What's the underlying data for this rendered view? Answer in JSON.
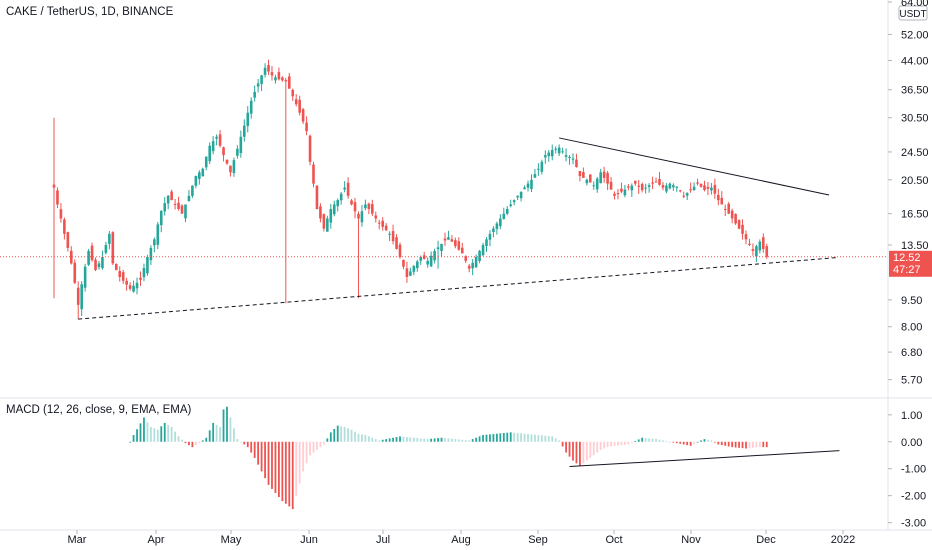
{
  "header": {
    "symbol_title": "CAKE / TetherUS, 1D, BINANCE",
    "currency_badge": "USDT"
  },
  "price_tag": {
    "price": "12.52",
    "countdown": "47:27"
  },
  "macd_title": "MACD (12, 26, close, 9, EMA, EMA)",
  "colors": {
    "up": "#26a69a",
    "down": "#ef5350",
    "hist_up": "#26a69a",
    "hist_down": "#ef5350",
    "hist_up_light": "#b2dfdb",
    "hist_down_light": "#ffcdd2",
    "price_line": "#ef5350",
    "trendline": "#131722",
    "axis_border": "#e0e3eb"
  },
  "chart_data": [
    {
      "type": "candlestick",
      "title": "CAKE / TetherUS, 1D, BINANCE",
      "scale": "log",
      "ylim": [
        5.2,
        64.0
      ],
      "y_ticks": [
        "64.00",
        "52.00",
        "44.00",
        "36.50",
        "30.50",
        "24.50",
        "20.50",
        "16.50",
        "13.50",
        "9.50",
        "8.00",
        "6.80",
        "5.70"
      ],
      "x_ticks": [
        "Mar",
        "Apr",
        "May",
        "Jun",
        "Jul",
        "Aug",
        "Sep",
        "Oct",
        "Nov",
        "Dec",
        "2022"
      ],
      "last_price": 12.52,
      "price_path": [
        [
          0,
          19.5
        ],
        [
          1,
          17.5
        ],
        [
          3,
          14.5
        ],
        [
          5,
          12.0
        ],
        [
          7,
          9.2
        ],
        [
          8,
          10.5
        ],
        [
          10,
          13.0
        ],
        [
          12,
          11.5
        ],
        [
          14,
          12.5
        ],
        [
          16,
          14.5
        ],
        [
          17,
          12.0
        ],
        [
          19,
          11.0
        ],
        [
          22,
          10.2
        ],
        [
          25,
          10.8
        ],
        [
          27,
          12.5
        ],
        [
          29,
          14.0
        ],
        [
          31,
          16.8
        ],
        [
          33,
          18.5
        ],
        [
          35,
          17.5
        ],
        [
          37,
          16.5
        ],
        [
          39,
          18.5
        ],
        [
          41,
          21.0
        ],
        [
          43,
          22.0
        ],
        [
          45,
          25.5
        ],
        [
          47,
          27.0
        ],
        [
          49,
          24.0
        ],
        [
          51,
          21.5
        ],
        [
          53,
          25.0
        ],
        [
          55,
          29.0
        ],
        [
          57,
          34.0
        ],
        [
          59,
          38.0
        ],
        [
          61,
          42.0
        ],
        [
          63,
          40.0
        ],
        [
          65,
          39.0
        ],
        [
          67,
          38.5
        ],
        [
          69,
          35.0
        ],
        [
          71,
          31.5
        ],
        [
          73,
          28.0
        ],
        [
          74,
          23.0
        ],
        [
          76,
          17.0
        ],
        [
          78,
          15.0
        ],
        [
          80,
          17.0
        ],
        [
          82,
          18.0
        ],
        [
          84,
          19.5
        ],
        [
          86,
          17.5
        ],
        [
          88,
          16.0
        ],
        [
          90,
          17.5
        ],
        [
          92,
          16.5
        ],
        [
          94,
          15.5
        ],
        [
          97,
          14.5
        ],
        [
          100,
          12.5
        ],
        [
          102,
          11.0
        ],
        [
          104,
          11.8
        ],
        [
          106,
          12.5
        ],
        [
          108,
          12.2
        ],
        [
          110,
          13.0
        ],
        [
          112,
          13.6
        ],
        [
          114,
          14.2
        ],
        [
          116,
          13.4
        ],
        [
          118,
          12.8
        ],
        [
          120,
          11.6
        ],
        [
          122,
          12.5
        ],
        [
          124,
          13.5
        ],
        [
          126,
          14.5
        ],
        [
          128,
          15.5
        ],
        [
          130,
          16.5
        ],
        [
          132,
          17.5
        ],
        [
          134,
          18.5
        ],
        [
          136,
          19.5
        ],
        [
          138,
          20.5
        ],
        [
          140,
          22.0
        ],
        [
          142,
          24.0
        ],
        [
          144,
          24.8
        ],
        [
          146,
          25.2
        ],
        [
          148,
          24.0
        ],
        [
          150,
          23.5
        ],
        [
          152,
          21.0
        ],
        [
          154,
          20.5
        ],
        [
          156,
          19.8
        ],
        [
          158,
          21.5
        ],
        [
          160,
          20.0
        ],
        [
          162,
          18.5
        ],
        [
          164,
          19.0
        ],
        [
          166,
          19.5
        ],
        [
          168,
          20.0
        ],
        [
          170,
          19.2
        ],
        [
          172,
          19.8
        ],
        [
          174,
          20.2
        ],
        [
          176,
          19.5
        ],
        [
          178,
          20.0
        ],
        [
          180,
          19.6
        ],
        [
          182,
          18.5
        ],
        [
          184,
          19.2
        ],
        [
          186,
          20.0
        ],
        [
          188,
          19.2
        ],
        [
          190,
          19.5
        ],
        [
          192,
          18.0
        ],
        [
          194,
          17.0
        ],
        [
          196,
          16.0
        ],
        [
          198,
          15.0
        ],
        [
          200,
          14.0
        ],
        [
          202,
          13.0
        ],
        [
          204,
          13.8
        ],
        [
          206,
          12.52
        ]
      ],
      "trendlines": [
        {
          "name": "descending-resistance",
          "style": "solid",
          "from": [
            146,
            26.8
          ],
          "to": [
            224,
            18.6
          ]
        },
        {
          "name": "rising-support",
          "style": "dashed",
          "from": [
            7,
            8.4
          ],
          "to": [
            226,
            12.45
          ]
        }
      ]
    },
    {
      "type": "histogram",
      "title": "MACD (12, 26, close, 9, EMA, EMA)",
      "ylim": [
        -3.2,
        1.55
      ],
      "y_ticks": [
        "1.00",
        "0.00",
        "-1.00",
        "-2.00",
        "-3.00"
      ],
      "hist_path": [
        [
          22,
          0.0
        ],
        [
          23,
          0.25
        ],
        [
          26,
          0.9
        ],
        [
          28,
          0.55
        ],
        [
          30,
          0.45
        ],
        [
          32,
          0.7
        ],
        [
          34,
          0.55
        ],
        [
          36,
          0.2
        ],
        [
          38,
          -0.05
        ],
        [
          40,
          -0.2
        ],
        [
          42,
          -0.05
        ],
        [
          44,
          0.15
        ],
        [
          46,
          0.7
        ],
        [
          48,
          0.55
        ],
        [
          49,
          1.2
        ],
        [
          50,
          1.3
        ],
        [
          52,
          0.5
        ],
        [
          53,
          0.1
        ],
        [
          56,
          -0.2
        ],
        [
          58,
          -0.6
        ],
        [
          60,
          -1.1
        ],
        [
          62,
          -1.6
        ],
        [
          64,
          -1.9
        ],
        [
          66,
          -2.2
        ],
        [
          68,
          -2.4
        ],
        [
          69,
          -2.5
        ],
        [
          70,
          -2.0
        ],
        [
          72,
          -1.1
        ],
        [
          74,
          -0.5
        ],
        [
          76,
          -0.3
        ],
        [
          78,
          -0.1
        ],
        [
          80,
          0.35
        ],
        [
          82,
          0.6
        ],
        [
          84,
          0.55
        ],
        [
          86,
          0.45
        ],
        [
          88,
          0.3
        ],
        [
          90,
          0.25
        ],
        [
          92,
          0.15
        ],
        [
          94,
          0.05
        ],
        [
          96,
          0.1
        ],
        [
          98,
          0.15
        ],
        [
          100,
          0.2
        ],
        [
          104,
          0.15
        ],
        [
          108,
          0.1
        ],
        [
          112,
          0.15
        ],
        [
          116,
          0.1
        ],
        [
          120,
          0.05
        ],
        [
          124,
          0.25
        ],
        [
          128,
          0.3
        ],
        [
          132,
          0.35
        ],
        [
          136,
          0.3
        ],
        [
          140,
          0.25
        ],
        [
          144,
          0.2
        ],
        [
          146,
          0.05
        ],
        [
          148,
          -0.4
        ],
        [
          150,
          -0.7
        ],
        [
          152,
          -0.9
        ],
        [
          154,
          -0.7
        ],
        [
          156,
          -0.5
        ],
        [
          158,
          -0.3
        ],
        [
          160,
          -0.2
        ],
        [
          162,
          -0.15
        ],
        [
          166,
          -0.1
        ],
        [
          170,
          0.15
        ],
        [
          174,
          0.1
        ],
        [
          178,
          0.0
        ],
        [
          182,
          -0.1
        ],
        [
          184,
          -0.15
        ],
        [
          186,
          0.0
        ],
        [
          188,
          0.1
        ],
        [
          190,
          0.05
        ],
        [
          192,
          -0.1
        ],
        [
          196,
          -0.2
        ],
        [
          200,
          -0.25
        ],
        [
          204,
          -0.2
        ],
        [
          206,
          -0.2
        ]
      ],
      "trendlines": [
        {
          "name": "macd-rising-trend",
          "style": "solid",
          "from": [
            149,
            -0.92
          ],
          "to": [
            227,
            -0.33
          ]
        }
      ]
    }
  ]
}
